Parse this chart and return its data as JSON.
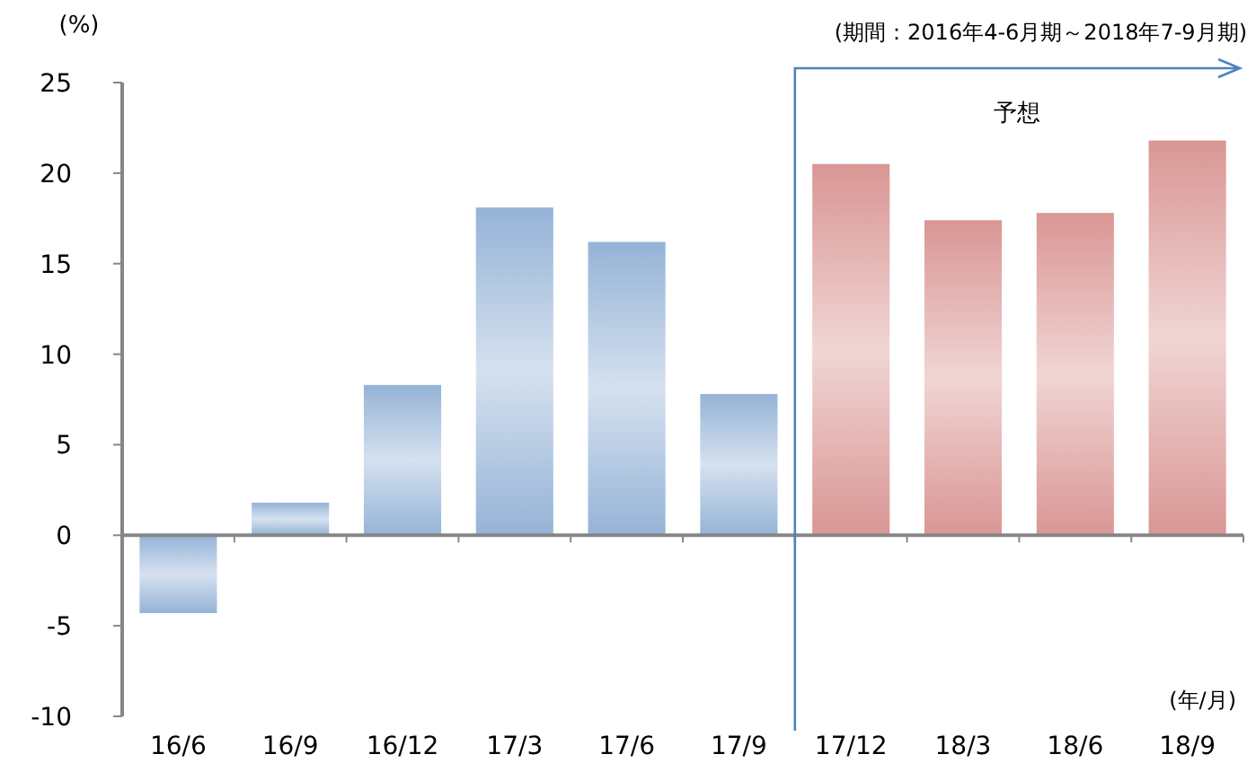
{
  "chart_data": {
    "type": "bar",
    "subtitle": "(期間：2016年4-6月期～2018年7-9月期)",
    "ylabel": "(%)",
    "xlabel": "(年/月)",
    "categories": [
      "16/6",
      "16/9",
      "16/12",
      "17/3",
      "17/6",
      "17/9",
      "17/12",
      "18/3",
      "18/6",
      "18/9"
    ],
    "values": [
      -4.3,
      1.8,
      8.3,
      18.1,
      16.2,
      7.8,
      20.5,
      17.4,
      17.8,
      21.8
    ],
    "colors": [
      "#95b3d7",
      "#95b3d7",
      "#95b3d7",
      "#95b3d7",
      "#95b3d7",
      "#95b3d7",
      "#d99694",
      "#d99694",
      "#d99694",
      "#d99694"
    ],
    "ylim": [
      -10,
      25
    ],
    "yticks": [
      -10,
      -5,
      0,
      5,
      10,
      15,
      20,
      25
    ],
    "annotations": [
      "予想"
    ]
  }
}
